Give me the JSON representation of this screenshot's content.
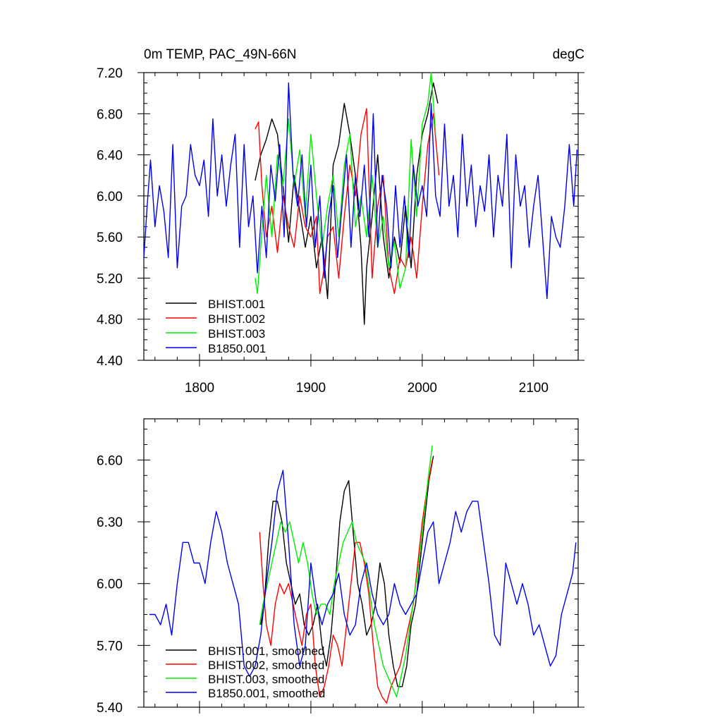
{
  "chart_data": [
    {
      "type": "line",
      "title": "0m TEMP, PAC_49N-66N",
      "units": "degC",
      "xlim": [
        1750,
        2140
      ],
      "ylim": [
        4.4,
        7.2
      ],
      "xticks": [
        1800,
        1900,
        2000,
        2100
      ],
      "xtick_labels": [
        "1800",
        "1900",
        "2000",
        "2100"
      ],
      "yticks": [
        4.4,
        4.8,
        5.2,
        5.6,
        6.0,
        6.4,
        6.8,
        7.2
      ],
      "ytick_labels": [
        "4.40",
        "4.80",
        "5.20",
        "5.60",
        "6.00",
        "6.40",
        "6.80",
        "7.20"
      ],
      "legend_position": "bottom-left",
      "grid": false,
      "series": [
        {
          "name": "BHIST.001",
          "color": "#000000",
          "x": [
            1850,
            1855,
            1860,
            1865,
            1870,
            1875,
            1880,
            1885,
            1890,
            1895,
            1900,
            1905,
            1910,
            1915,
            1920,
            1925,
            1930,
            1935,
            1940,
            1945,
            1948,
            1950,
            1955,
            1960,
            1965,
            1970,
            1975,
            1980,
            1985,
            1990,
            1995,
            2000,
            2005,
            2010,
            2014
          ],
          "y": [
            6.15,
            6.4,
            6.55,
            6.75,
            6.6,
            6.1,
            5.55,
            6.2,
            5.85,
            5.5,
            5.8,
            5.3,
            5.6,
            5.0,
            6.3,
            6.5,
            6.9,
            6.6,
            6.2,
            5.5,
            4.75,
            5.3,
            5.8,
            6.4,
            5.6,
            5.2,
            5.6,
            5.35,
            5.9,
            5.3,
            6.2,
            6.6,
            6.8,
            7.1,
            6.9
          ]
        },
        {
          "name": "BHIST.002",
          "color": "#ff0000",
          "x": [
            1850,
            1853,
            1856,
            1860,
            1865,
            1870,
            1875,
            1880,
            1885,
            1890,
            1895,
            1900,
            1905,
            1908,
            1912,
            1915,
            1920,
            1925,
            1930,
            1935,
            1940,
            1945,
            1950,
            1955,
            1960,
            1965,
            1970,
            1975,
            1980,
            1985,
            1990,
            1995,
            2000,
            2005,
            2010,
            2015
          ],
          "y": [
            6.65,
            6.72,
            6.1,
            5.6,
            5.9,
            5.45,
            6.0,
            5.7,
            5.5,
            6.0,
            5.7,
            5.6,
            5.8,
            5.05,
            5.3,
            5.6,
            5.7,
            5.2,
            5.8,
            6.3,
            6.0,
            6.6,
            6.85,
            5.2,
            5.9,
            6.2,
            5.3,
            5.05,
            5.4,
            5.3,
            5.6,
            5.2,
            5.9,
            6.5,
            6.8,
            6.2
          ]
        },
        {
          "name": "BHIST.003",
          "color": "#00ee00",
          "x": [
            1850,
            1852,
            1855,
            1860,
            1865,
            1870,
            1875,
            1880,
            1885,
            1890,
            1895,
            1900,
            1905,
            1910,
            1915,
            1920,
            1925,
            1930,
            1935,
            1940,
            1945,
            1950,
            1955,
            1960,
            1965,
            1970,
            1975,
            1980,
            1985,
            1990,
            1995,
            2000,
            2005,
            2008,
            2012
          ],
          "y": [
            5.2,
            5.05,
            5.5,
            6.2,
            5.6,
            6.4,
            6.1,
            6.75,
            6.1,
            6.45,
            5.8,
            6.6,
            6.0,
            5.5,
            5.9,
            6.2,
            5.6,
            6.3,
            6.6,
            5.7,
            6.0,
            5.6,
            6.2,
            5.5,
            5.8,
            5.3,
            5.55,
            5.1,
            5.3,
            6.55,
            5.8,
            6.7,
            6.9,
            7.2,
            6.6
          ]
        },
        {
          "name": "B1850.001",
          "color": "#0000ee",
          "x": [
            1750,
            1753,
            1756,
            1760,
            1764,
            1768,
            1772,
            1776,
            1780,
            1784,
            1788,
            1792,
            1796,
            1800,
            1804,
            1808,
            1812,
            1816,
            1820,
            1824,
            1828,
            1832,
            1836,
            1840,
            1844,
            1848,
            1852,
            1856,
            1860,
            1864,
            1868,
            1872,
            1876,
            1880,
            1884,
            1888,
            1892,
            1896,
            1900,
            1904,
            1908,
            1912,
            1916,
            1920,
            1924,
            1928,
            1932,
            1936,
            1940,
            1944,
            1948,
            1952,
            1956,
            1960,
            1964,
            1968,
            1972,
            1976,
            1980,
            1984,
            1988,
            1992,
            1996,
            2000,
            2004,
            2008,
            2012,
            2016,
            2020,
            2024,
            2028,
            2032,
            2036,
            2040,
            2044,
            2048,
            2052,
            2056,
            2060,
            2064,
            2068,
            2072,
            2076,
            2080,
            2084,
            2088,
            2092,
            2096,
            2100,
            2104,
            2108,
            2112,
            2116,
            2120,
            2124,
            2128,
            2132,
            2136,
            2139
          ],
          "y": [
            5.4,
            5.9,
            6.35,
            5.7,
            6.1,
            5.85,
            5.4,
            6.5,
            5.3,
            5.9,
            6.0,
            6.5,
            6.2,
            6.1,
            6.35,
            5.8,
            6.75,
            6.0,
            6.4,
            5.9,
            6.3,
            6.6,
            5.5,
            6.5,
            5.7,
            6.0,
            5.25,
            5.9,
            5.4,
            6.3,
            5.95,
            6.5,
            5.6,
            7.1,
            6.2,
            5.9,
            6.4,
            5.7,
            6.3,
            5.5,
            6.0,
            5.2,
            5.8,
            6.1,
            5.4,
            5.9,
            6.4,
            5.5,
            6.2,
            5.8,
            6.3,
            5.6,
            6.8,
            5.5,
            6.2,
            5.9,
            5.3,
            6.1,
            5.5,
            6.0,
            5.4,
            6.3,
            5.9,
            6.1,
            5.8,
            6.9,
            6.0,
            5.8,
            6.7,
            5.9,
            6.2,
            5.6,
            6.6,
            5.9,
            6.3,
            5.7,
            6.1,
            5.85,
            6.4,
            5.6,
            6.2,
            5.9,
            6.6,
            5.3,
            6.4,
            5.9,
            6.1,
            5.5,
            5.9,
            6.2,
            5.6,
            5.0,
            5.8,
            5.6,
            5.5,
            5.9,
            6.5,
            5.9,
            6.45
          ]
        }
      ]
    },
    {
      "type": "line",
      "xlim": [
        1750,
        2140
      ],
      "ylim": [
        5.4,
        6.8
      ],
      "xticks": [
        1800,
        1900,
        2000,
        2100
      ],
      "yticks": [
        5.4,
        5.7,
        6.0,
        6.3,
        6.6
      ],
      "ytick_labels": [
        "5.40",
        "5.70",
        "6.00",
        "6.30",
        "6.60"
      ],
      "legend_position": "bottom-left",
      "grid": false,
      "series": [
        {
          "name": "BHIST.001, smoothed",
          "color": "#000000",
          "x": [
            1855,
            1858,
            1862,
            1866,
            1870,
            1874,
            1878,
            1882,
            1886,
            1890,
            1894,
            1898,
            1902,
            1906,
            1910,
            1914,
            1918,
            1922,
            1926,
            1930,
            1934,
            1938,
            1942,
            1946,
            1950,
            1954,
            1958,
            1962,
            1966,
            1970,
            1974,
            1978,
            1982,
            1986,
            1990,
            1994,
            1998,
            2002,
            2006,
            2010
          ],
          "y": [
            5.8,
            5.9,
            6.2,
            6.4,
            6.4,
            6.3,
            6.1,
            6.0,
            5.9,
            5.95,
            5.8,
            5.75,
            5.8,
            5.9,
            5.7,
            5.6,
            5.75,
            6.0,
            6.3,
            6.45,
            6.5,
            6.25,
            6.0,
            5.9,
            5.75,
            5.8,
            5.9,
            6.1,
            6.0,
            5.75,
            5.6,
            5.5,
            5.5,
            5.6,
            5.8,
            5.9,
            6.1,
            6.3,
            6.5,
            6.62
          ]
        },
        {
          "name": "BHIST.002, smoothed",
          "color": "#ff0000",
          "x": [
            1854,
            1857,
            1860,
            1864,
            1868,
            1872,
            1876,
            1880,
            1884,
            1888,
            1892,
            1896,
            1900,
            1904,
            1908,
            1912,
            1916,
            1920,
            1924,
            1928,
            1932,
            1936,
            1940,
            1944,
            1948,
            1952,
            1956,
            1960,
            1964,
            1968,
            1972,
            1976,
            1980,
            1984,
            1988,
            1992,
            1996,
            2000,
            2004,
            2009
          ],
          "y": [
            6.25,
            6.0,
            5.8,
            5.7,
            5.9,
            6.0,
            5.95,
            6.0,
            5.9,
            5.8,
            5.7,
            5.85,
            5.9,
            5.6,
            5.45,
            5.5,
            5.6,
            5.75,
            5.7,
            5.6,
            5.8,
            6.0,
            6.2,
            6.2,
            6.1,
            5.95,
            5.7,
            5.5,
            5.45,
            5.42,
            5.5,
            5.55,
            5.6,
            5.7,
            5.8,
            5.9,
            6.1,
            6.3,
            6.45,
            6.6
          ]
        },
        {
          "name": "BHIST.003, smoothed",
          "color": "#00ee00",
          "x": [
            1854,
            1857,
            1861,
            1865,
            1869,
            1873,
            1877,
            1881,
            1885,
            1889,
            1893,
            1897,
            1901,
            1905,
            1909,
            1913,
            1917,
            1921,
            1925,
            1929,
            1933,
            1937,
            1941,
            1945,
            1949,
            1953,
            1957,
            1961,
            1965,
            1969,
            1973,
            1977,
            1981,
            1985,
            1989,
            1993,
            1997,
            2001,
            2005,
            2009
          ],
          "y": [
            5.8,
            5.9,
            6.0,
            6.1,
            6.2,
            6.3,
            6.25,
            6.3,
            6.2,
            6.1,
            6.2,
            6.1,
            5.95,
            5.85,
            5.9,
            5.9,
            5.85,
            6.0,
            6.1,
            6.2,
            6.25,
            6.3,
            6.2,
            6.15,
            6.1,
            5.95,
            5.8,
            5.7,
            5.6,
            5.55,
            5.5,
            5.45,
            5.55,
            5.65,
            5.8,
            5.95,
            6.1,
            6.3,
            6.5,
            6.67
          ]
        },
        {
          "name": "B1850.001, smoothed",
          "color": "#0000ee",
          "x": [
            1755,
            1760,
            1765,
            1770,
            1775,
            1780,
            1785,
            1790,
            1795,
            1800,
            1805,
            1810,
            1815,
            1820,
            1825,
            1830,
            1835,
            1840,
            1845,
            1850,
            1855,
            1860,
            1865,
            1870,
            1875,
            1880,
            1885,
            1890,
            1895,
            1900,
            1905,
            1910,
            1915,
            1920,
            1925,
            1930,
            1935,
            1940,
            1945,
            1950,
            1955,
            1960,
            1965,
            1970,
            1975,
            1980,
            1985,
            1990,
            1995,
            2000,
            2005,
            2010,
            2015,
            2020,
            2025,
            2030,
            2035,
            2040,
            2045,
            2050,
            2055,
            2060,
            2065,
            2070,
            2075,
            2080,
            2085,
            2090,
            2095,
            2100,
            2105,
            2110,
            2115,
            2120,
            2125,
            2130,
            2135,
            2138
          ],
          "y": [
            5.85,
            5.85,
            5.8,
            5.9,
            5.75,
            6.0,
            6.2,
            6.2,
            6.1,
            6.1,
            6.0,
            6.2,
            6.35,
            6.25,
            6.1,
            6.0,
            5.9,
            5.6,
            5.55,
            5.6,
            5.75,
            6.0,
            6.2,
            6.45,
            6.55,
            6.2,
            5.8,
            5.6,
            5.7,
            6.1,
            5.9,
            5.8,
            5.9,
            5.95,
            6.05,
            5.85,
            5.75,
            5.8,
            6.0,
            6.1,
            5.95,
            5.85,
            5.8,
            5.85,
            6.0,
            5.9,
            5.85,
            5.9,
            5.95,
            6.1,
            6.25,
            6.3,
            6.0,
            6.1,
            6.2,
            6.35,
            6.25,
            6.35,
            6.4,
            6.4,
            6.2,
            6.0,
            5.75,
            5.7,
            6.1,
            6.0,
            5.9,
            6.0,
            5.9,
            5.75,
            5.8,
            5.7,
            5.6,
            5.65,
            5.85,
            5.95,
            6.05,
            6.2
          ]
        }
      ]
    }
  ]
}
